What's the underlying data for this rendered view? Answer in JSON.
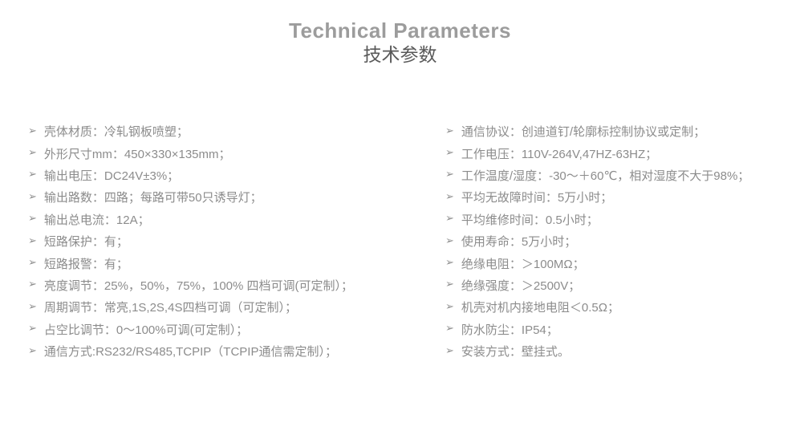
{
  "page": {
    "title_en": "Technical Parameters",
    "title_zh": "技术参数",
    "bullet_icon": "➢"
  },
  "colors": {
    "background": "#ffffff",
    "title_en": "#9c9c9c",
    "title_zh": "#595959",
    "body_text": "#8c8c8c"
  },
  "specs": {
    "left": [
      "壳体材质：冷轧钢板喷塑；",
      "外形尺寸mm：450×330×135mm；",
      "输出电压：DC24V±3%；",
      "输出路数：四路；每路可带50只诱导灯；",
      "输出总电流：12A；",
      "短路保护：有；",
      "短路报警：有；",
      "亮度调节：25%，50%，75%，100% 四档可调(可定制）；",
      "周期调节：常亮,1S,2S,4S四档可调（可定制）；",
      "占空比调节：0～100%可调(可定制）；",
      "通信方式:RS232/RS485,TCPIP（TCPIP通信需定制）；"
    ],
    "right": [
      "通信协议：创迪道钉/轮廓标控制协议或定制；",
      "工作电压：110V-264V,47HZ-63HZ；",
      "工作温度/湿度：-30～＋60℃，相对湿度不大于98%；",
      "平均无故障时间：5万小时；",
      "平均维修时间：0.5小时；",
      "使用寿命：5万小时；",
      "绝缘电阻：＞100MΩ；",
      "绝缘强度：＞2500V；",
      "机壳对机内接地电阻＜0.5Ω；",
      "防水防尘：IP54；",
      "安装方式：壁挂式。"
    ]
  }
}
